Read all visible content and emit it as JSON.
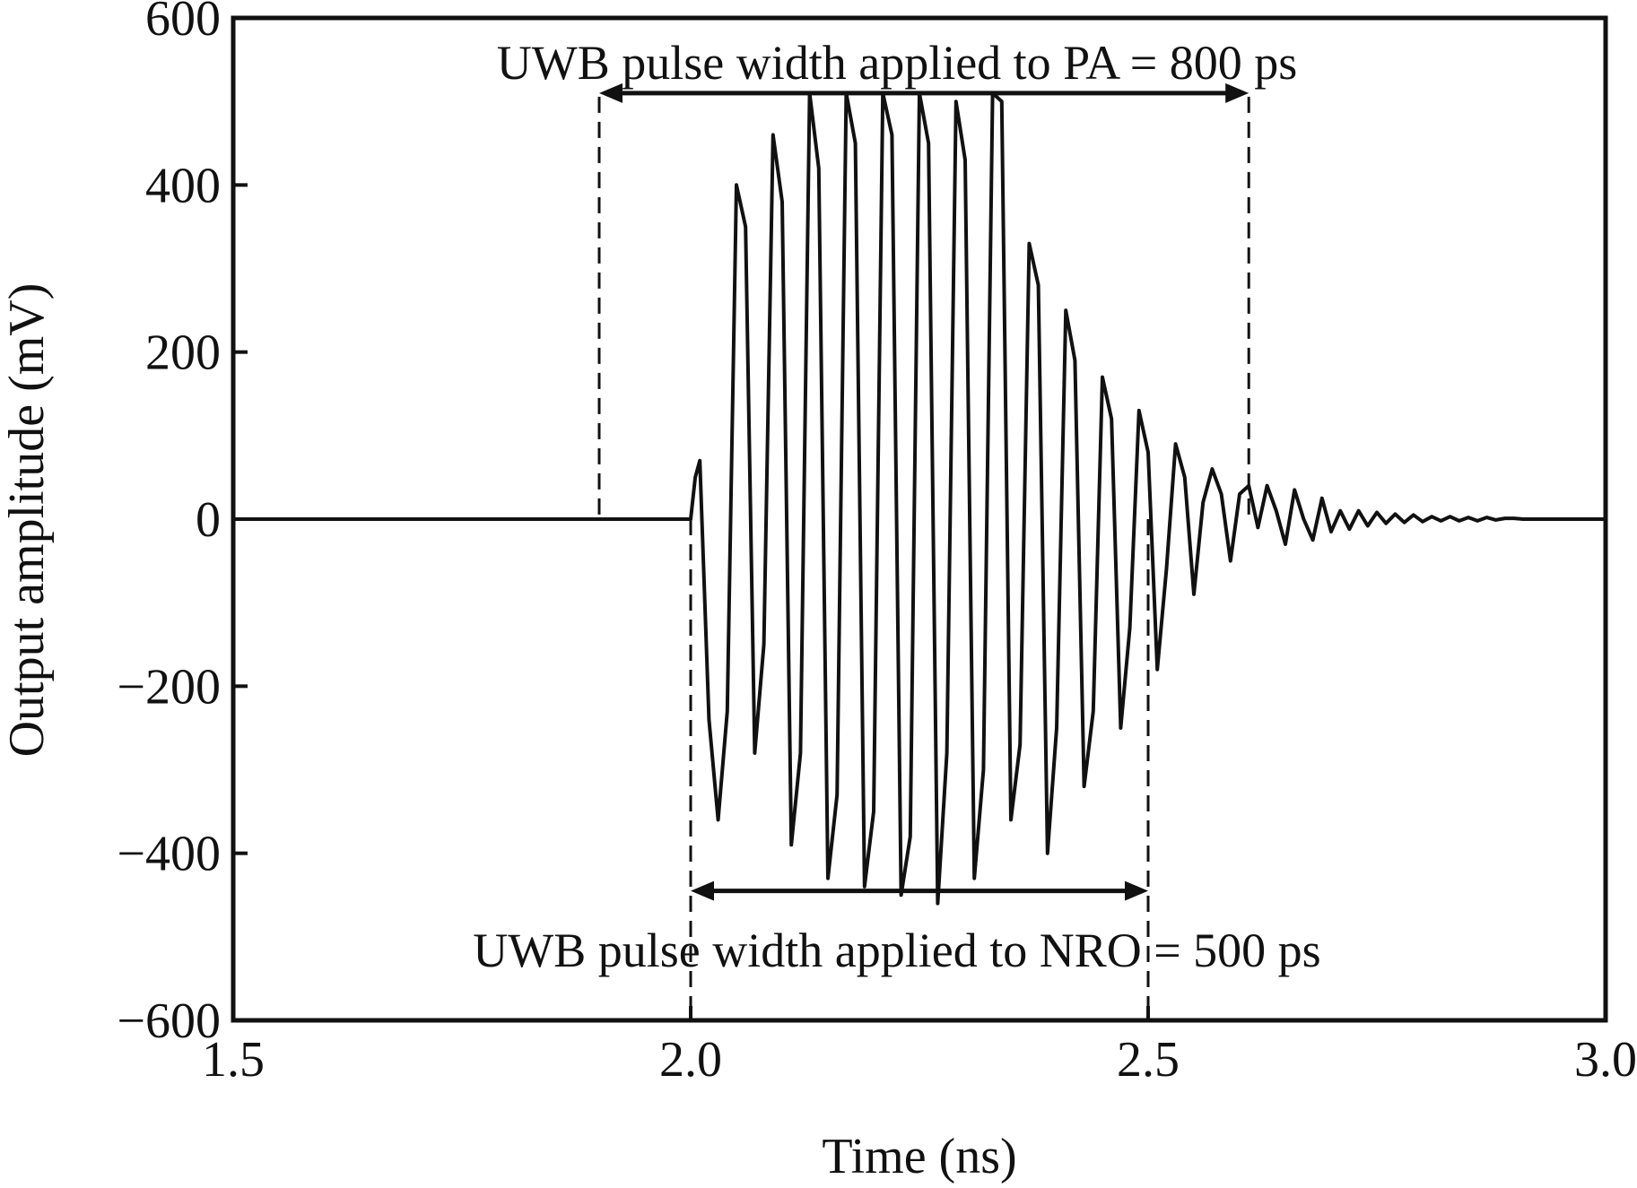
{
  "chart_data": {
    "type": "line",
    "title": "",
    "xlabel": "Time (ns)",
    "ylabel": "Output amplitude (mV)",
    "xlim": [
      1.5,
      3.0
    ],
    "ylim": [
      -600,
      600
    ],
    "xticks": [
      1.5,
      2.0,
      2.5,
      3.0
    ],
    "xtick_labels": [
      "1.5",
      "2.0",
      "2.5",
      "3.0"
    ],
    "yticks": [
      600,
      400,
      200,
      0,
      -200,
      -400,
      -600
    ],
    "ytick_labels": [
      "600",
      "400",
      "200",
      "0",
      "−200",
      "−400",
      "−600"
    ],
    "grid": false,
    "legend": false,
    "line_color": "#111111",
    "series": [
      {
        "x": [
          1.5,
          2.0,
          2.005,
          2.01,
          2.02,
          2.03,
          2.04,
          2.05,
          2.06,
          2.07,
          2.08,
          2.09,
          2.1,
          2.11,
          2.12,
          2.13,
          2.14,
          2.15,
          2.16,
          2.17,
          2.18,
          2.19,
          2.2,
          2.21,
          2.22,
          2.23,
          2.24,
          2.25,
          2.26,
          2.27,
          2.28,
          2.29,
          2.3,
          2.31,
          2.32,
          2.33,
          2.34,
          2.35,
          2.36,
          2.37,
          2.38,
          2.39,
          2.4,
          2.41,
          2.42,
          2.43,
          2.44,
          2.45,
          2.46,
          2.47,
          2.48,
          2.49,
          2.5,
          2.51,
          2.52,
          2.53,
          2.54,
          2.55,
          2.56,
          2.57,
          2.58,
          2.59,
          2.6,
          2.61,
          2.62,
          2.63,
          2.64,
          2.65,
          2.66,
          2.67,
          2.68,
          2.69,
          2.7,
          2.71,
          2.72,
          2.73,
          2.74,
          2.75,
          2.76,
          2.77,
          2.78,
          2.79,
          2.8,
          2.81,
          2.82,
          2.83,
          2.84,
          2.85,
          2.86,
          2.87,
          2.88,
          2.89,
          2.9,
          2.91,
          2.92,
          2.93,
          3.0
        ],
        "y": [
          0,
          0,
          50,
          70,
          -240,
          -360,
          -230,
          400,
          350,
          -280,
          -150,
          460,
          380,
          -390,
          -280,
          510,
          420,
          -430,
          -330,
          510,
          450,
          -440,
          -350,
          510,
          460,
          -450,
          -380,
          510,
          450,
          -460,
          -280,
          500,
          430,
          -430,
          -300,
          510,
          500,
          -360,
          -270,
          330,
          280,
          -400,
          -250,
          250,
          190,
          -320,
          -230,
          170,
          120,
          -250,
          -130,
          130,
          80,
          -180,
          -60,
          90,
          50,
          -90,
          20,
          60,
          30,
          -50,
          30,
          40,
          -10,
          40,
          10,
          -30,
          35,
          0,
          -25,
          25,
          -15,
          10,
          -12,
          10,
          -8,
          8,
          -5,
          6,
          -4,
          5,
          -3,
          3,
          -2,
          3,
          -2,
          2,
          -2,
          2,
          -1,
          1,
          1,
          0,
          0,
          0,
          0
        ]
      }
    ],
    "annotations": [
      {
        "text": "UWB pulse width applied to PA = 800 ps",
        "x_start": 1.9,
        "x_end": 2.61,
        "y": 510
      },
      {
        "text": "UWB pulse width applied to  NRO = 500 ps",
        "x_start": 2.0,
        "x_end": 2.5,
        "y": -445
      }
    ]
  }
}
